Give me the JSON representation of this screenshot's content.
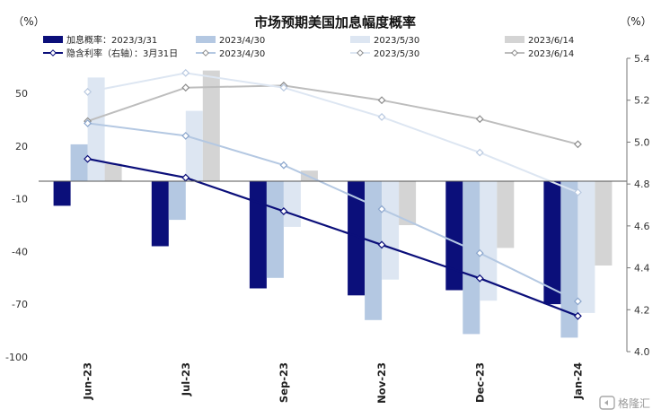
{
  "chart_data": {
    "type": "bar",
    "title": "市场预期美国加息幅度概率",
    "left_unit": "（%）",
    "right_unit": "（%）",
    "categories": [
      "Jun-23",
      "Jul-23",
      "Sep-23",
      "Nov-23",
      "Dec-23",
      "Jan-24"
    ],
    "left_axis": {
      "ylim": [
        -100,
        80
      ],
      "ticks": [
        50,
        20,
        -10,
        -40,
        -70,
        -100
      ]
    },
    "right_axis": {
      "ylim": [
        4.0,
        5.4
      ],
      "ticks": [
        5.4,
        5.2,
        5.0,
        4.8,
        4.6,
        4.4,
        4.2,
        4.0
      ]
    },
    "bar_series": [
      {
        "name": "加息概率：2023/3/31",
        "color": "#0b0f7a",
        "values": [
          -14,
          -37,
          -61,
          -65,
          -62,
          -70
        ]
      },
      {
        "name": "2023/4/30",
        "color": "#b4c8e2",
        "values": [
          21,
          -22,
          -55,
          -79,
          -87,
          -89
        ]
      },
      {
        "name": "2023/5/30",
        "color": "#dde6f2",
        "values": [
          59,
          40,
          -26,
          -56,
          -68,
          -75
        ]
      },
      {
        "name": "2023/6/14",
        "color": "#d4d4d4",
        "values": [
          10,
          63,
          6,
          -25,
          -38,
          -48
        ]
      }
    ],
    "line_series": [
      {
        "name": "隐含利率（右轴）：3月31日",
        "color": "#0b0f7a",
        "values": [
          4.92,
          4.83,
          4.67,
          4.51,
          4.35,
          4.17
        ]
      },
      {
        "name": "2023/4/30",
        "color": "#b4c8e2",
        "values": [
          5.09,
          5.03,
          4.89,
          4.68,
          4.47,
          4.24
        ]
      },
      {
        "name": "2023/5/30",
        "color": "#dde6f2",
        "values": [
          5.24,
          5.33,
          5.26,
          5.12,
          4.95,
          4.76
        ]
      },
      {
        "name": "2023/6/14",
        "color": "#bdbdbd",
        "values": [
          5.1,
          5.26,
          5.27,
          5.2,
          5.11,
          4.99
        ]
      }
    ],
    "grid": false,
    "legend_position": "top"
  },
  "watermark": {
    "text": "格隆汇",
    "icon": "gelonghui-logo-icon"
  }
}
